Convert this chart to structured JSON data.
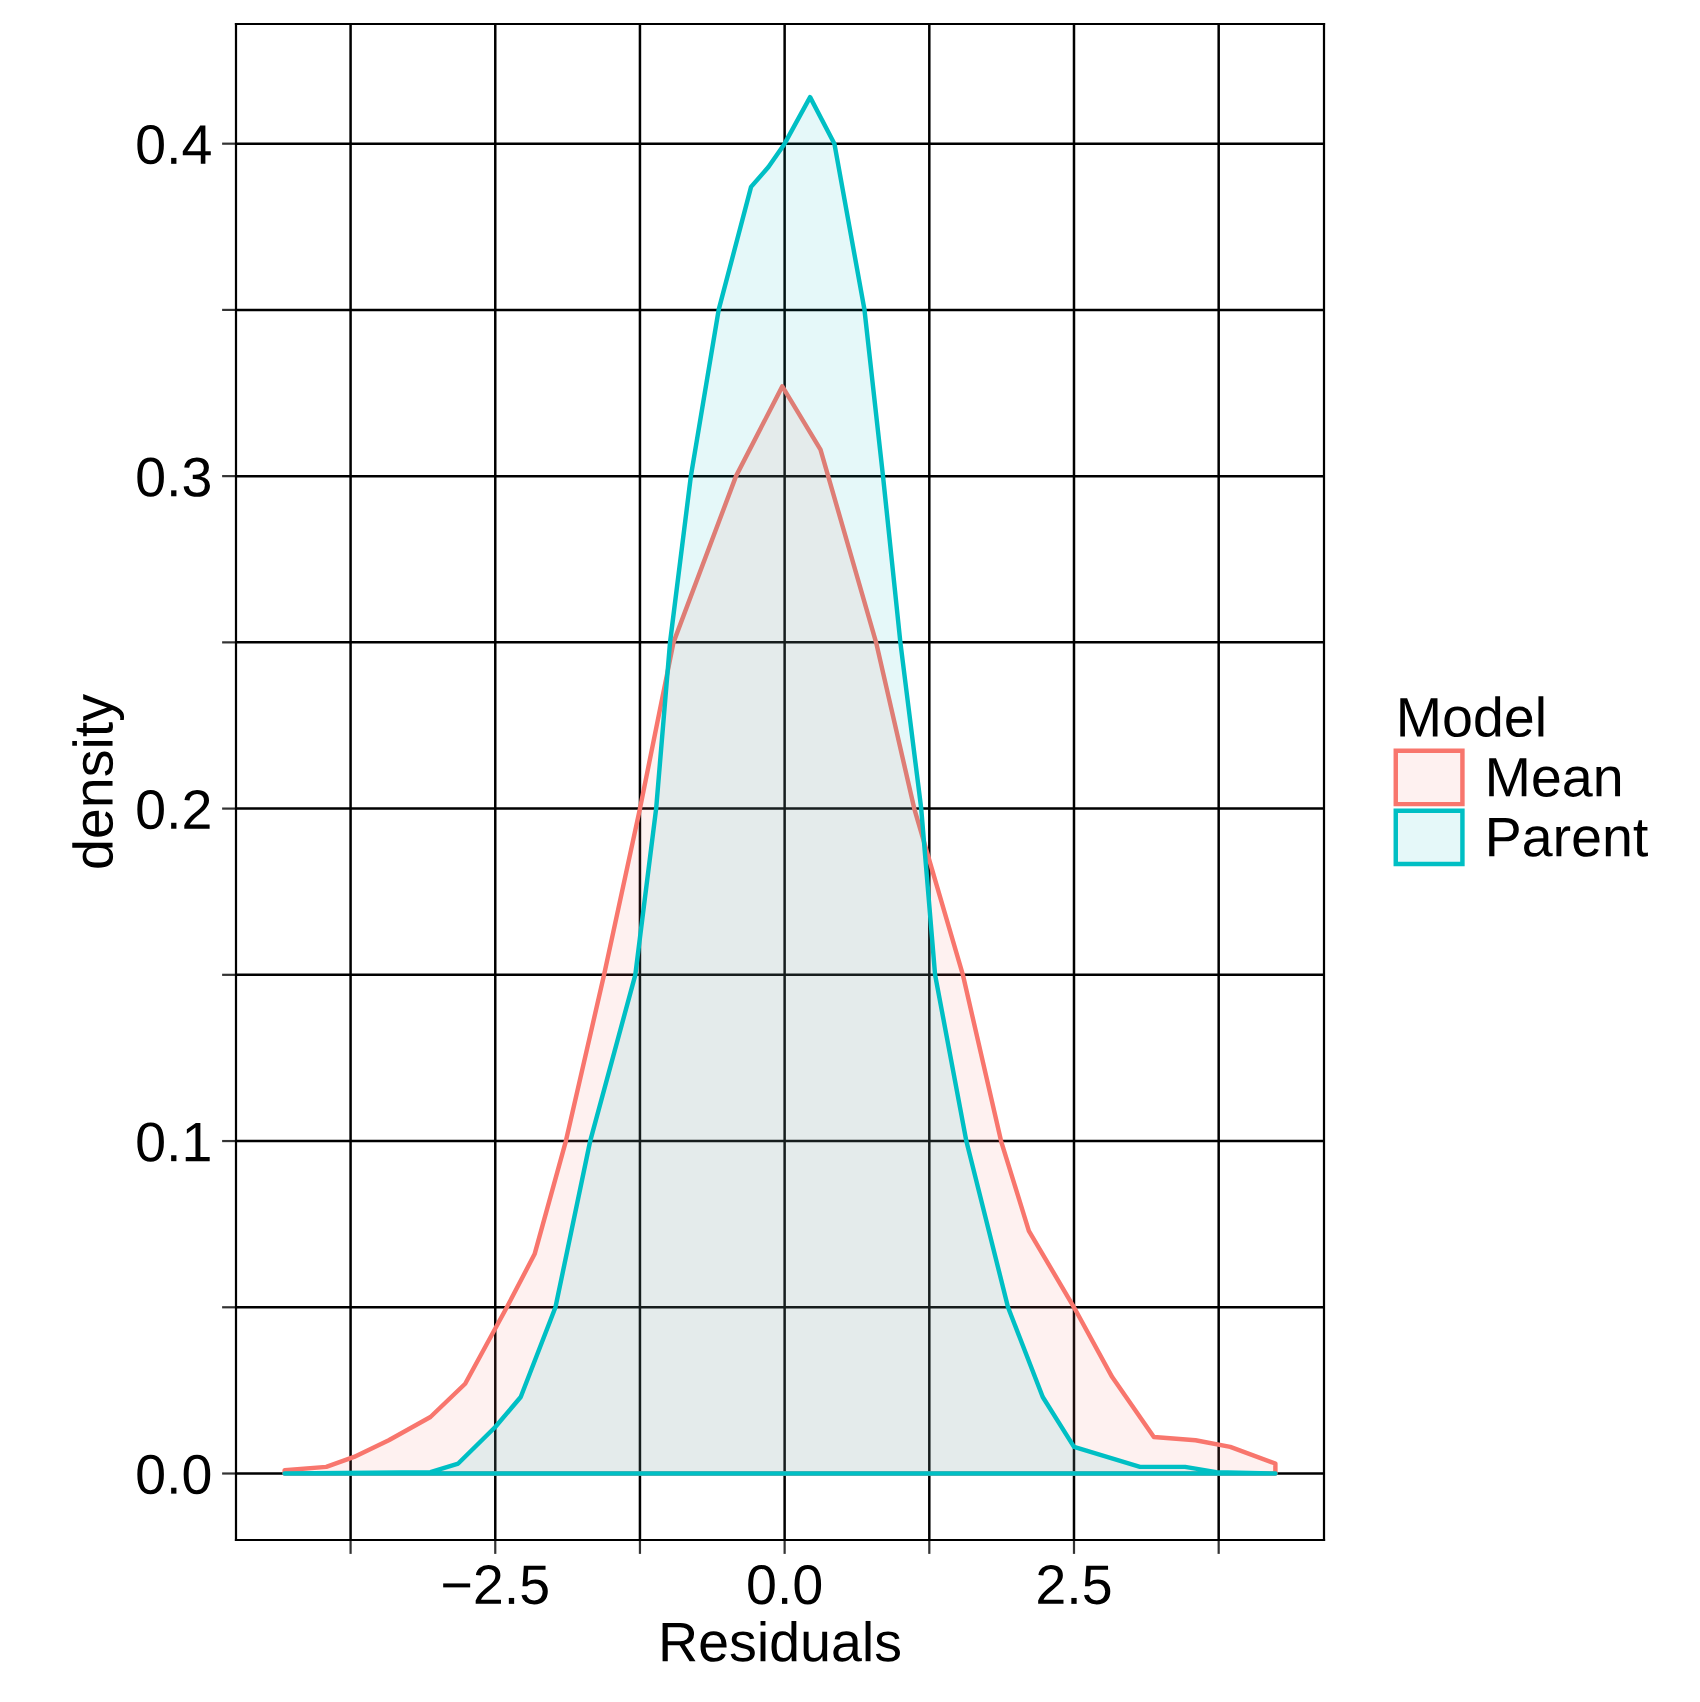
{
  "chart_data": {
    "type": "area",
    "xlabel": "Residuals",
    "ylabel": "density",
    "legend_title": "Model",
    "legend": "right",
    "grid": true,
    "xlim": [
      -4.74,
      4.66
    ],
    "ylim": [
      -0.02,
      0.436
    ],
    "xticks": [
      {
        "value": -3.75,
        "label": null
      },
      {
        "value": -2.5,
        "label": "−2.5"
      },
      {
        "value": -1.25,
        "label": null
      },
      {
        "value": 0,
        "label": "0.0"
      },
      {
        "value": 1.25,
        "label": null
      },
      {
        "value": 2.5,
        "label": "2.5"
      },
      {
        "value": 3.75,
        "label": null
      }
    ],
    "yticks": [
      {
        "value": 0,
        "label": "0.0"
      },
      {
        "value": 0.05,
        "label": null
      },
      {
        "value": 0.1,
        "label": "0.1"
      },
      {
        "value": 0.15,
        "label": null
      },
      {
        "value": 0.2,
        "label": "0.2"
      },
      {
        "value": 0.25,
        "label": null
      },
      {
        "value": 0.3,
        "label": "0.3"
      },
      {
        "value": 0.35,
        "label": null
      },
      {
        "value": 0.4,
        "label": "0.4"
      }
    ],
    "series": [
      {
        "name": "Mean",
        "color": "#f8766d",
        "x": [
          -4.32,
          -3.96,
          -3.72,
          -3.42,
          -3.06,
          -2.76,
          -2.4,
          -2.16,
          -1.89,
          -1.56,
          -1.25,
          -0.96,
          -0.42,
          -0.02,
          0.31,
          0.79,
          1.12,
          1.54,
          1.87,
          2.11,
          2.5,
          2.83,
          3.19,
          3.55,
          3.85,
          4.24
        ],
        "values": [
          0.001,
          0.002,
          0.005,
          0.01,
          0.017,
          0.027,
          0.05,
          0.066,
          0.1,
          0.15,
          0.2,
          0.25,
          0.3,
          0.327,
          0.308,
          0.25,
          0.2,
          0.15,
          0.1,
          0.073,
          0.05,
          0.029,
          0.011,
          0.01,
          0.008,
          0.003
        ]
      },
      {
        "name": "Parent",
        "color": "#00bfc4",
        "x": [
          -4.32,
          -3.06,
          -2.82,
          -2.5,
          -2.28,
          -1.98,
          -1.68,
          -1.29,
          -1.11,
          -0.99,
          -0.81,
          -0.57,
          -0.29,
          -0.14,
          0,
          0.22,
          0.43,
          0.69,
          0.85,
          1.0,
          1.18,
          1.3,
          1.57,
          1.93,
          2.23,
          2.5,
          3.07,
          3.46,
          3.73,
          4.24
        ],
        "values": [
          0,
          0.0004,
          0.003,
          0.014,
          0.023,
          0.05,
          0.1,
          0.15,
          0.2,
          0.25,
          0.3,
          0.35,
          0.387,
          0.393,
          0.4,
          0.414,
          0.4,
          0.35,
          0.3,
          0.25,
          0.2,
          0.15,
          0.1,
          0.05,
          0.023,
          0.008,
          0.002,
          0.002,
          0.0004,
          0
        ]
      }
    ]
  }
}
